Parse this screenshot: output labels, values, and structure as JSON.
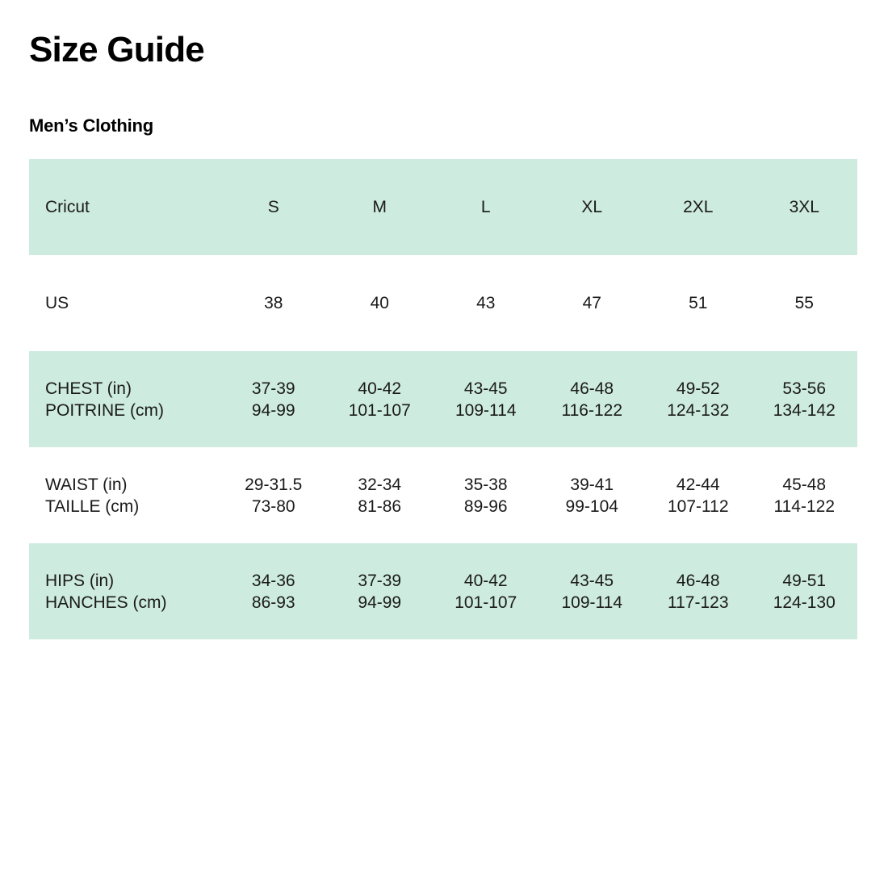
{
  "page": {
    "title": "Size Guide",
    "subtitle": "Men’s Clothing"
  },
  "colors": {
    "row_highlight": "#cdebde",
    "text": "#1a1a1a",
    "background": "#ffffff"
  },
  "size_table": {
    "brand": "Cricut",
    "size_labels": [
      "S",
      "M",
      "L",
      "XL",
      "2XL",
      "3XL"
    ],
    "rows": [
      {
        "name": "sizes-header",
        "shaded": true,
        "cells": [
          [
            "Cricut"
          ],
          [
            "S"
          ],
          [
            "M"
          ],
          [
            "L"
          ],
          [
            "XL"
          ],
          [
            "2XL"
          ],
          [
            "3XL"
          ]
        ]
      },
      {
        "name": "us-size",
        "shaded": false,
        "cells": [
          [
            "US"
          ],
          [
            "38"
          ],
          [
            "40"
          ],
          [
            "43"
          ],
          [
            "47"
          ],
          [
            "51"
          ],
          [
            "55"
          ]
        ]
      },
      {
        "name": "chest",
        "shaded": true,
        "cells": [
          [
            "CHEST (in)",
            "POITRINE (cm)"
          ],
          [
            "37-39",
            "94-99"
          ],
          [
            "40-42",
            "101-107"
          ],
          [
            "43-45",
            "109-114"
          ],
          [
            "46-48",
            "116-122"
          ],
          [
            "49-52",
            "124-132"
          ],
          [
            "53-56",
            "134-142"
          ]
        ]
      },
      {
        "name": "waist",
        "shaded": false,
        "cells": [
          [
            "WAIST (in)",
            "TAILLE (cm)"
          ],
          [
            "29-31.5",
            "73-80"
          ],
          [
            "32-34",
            "81-86"
          ],
          [
            "35-38",
            "89-96"
          ],
          [
            "39-41",
            "99-104"
          ],
          [
            "42-44",
            "107-112"
          ],
          [
            "45-48",
            "114-122"
          ]
        ]
      },
      {
        "name": "hips",
        "shaded": true,
        "cells": [
          [
            "HIPS (in)",
            "HANCHES (cm)"
          ],
          [
            "34-36",
            "86-93"
          ],
          [
            "37-39",
            "94-99"
          ],
          [
            "40-42",
            "101-107"
          ],
          [
            "43-45",
            "109-114"
          ],
          [
            "46-48",
            "117-123"
          ],
          [
            "49-51",
            "124-130"
          ]
        ]
      }
    ]
  }
}
